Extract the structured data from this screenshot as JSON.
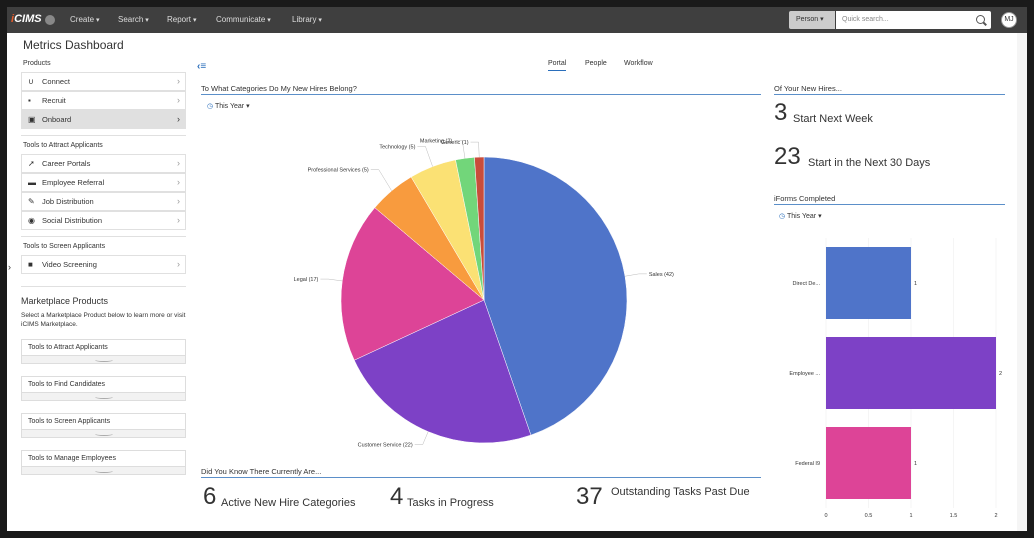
{
  "nav": {
    "logo": "icims",
    "items": [
      "Create",
      "Search",
      "Report",
      "Communicate",
      "Library"
    ],
    "search_type": "Person",
    "search_placeholder": "Quick search...",
    "avatar": "MJ"
  },
  "page_title": "Metrics Dashboard",
  "sidebar": {
    "products_header": "Products",
    "products": [
      {
        "label": "Connect",
        "icon": "magnet-icon"
      },
      {
        "label": "Recruit",
        "icon": "briefcase-icon"
      },
      {
        "label": "Onboard",
        "icon": "id-card-icon"
      }
    ],
    "attract_header": "Tools to Attract Applicants",
    "attract": [
      {
        "label": "Career Portals",
        "icon": "megaphone-icon"
      },
      {
        "label": "Employee Referral",
        "icon": "users-icon"
      },
      {
        "label": "Job Distribution",
        "icon": "pin-icon"
      },
      {
        "label": "Social Distribution",
        "icon": "broadcast-icon"
      }
    ],
    "screen_header": "Tools to Screen Applicants",
    "screen": [
      {
        "label": "Video Screening",
        "icon": "video-camera-icon"
      }
    ],
    "marketplace_title": "Marketplace Products",
    "marketplace_desc": "Select a Marketplace Product below to learn more or visit iCIMS Marketplace.",
    "marketplace_items": [
      "Tools to Attract Applicants",
      "Tools to Find Candidates",
      "Tools to Screen Applicants",
      "Tools to Manage Employees"
    ]
  },
  "tabs": [
    "Portal",
    "People",
    "Workflow"
  ],
  "pie_section": {
    "title": "To What Categories Do My New Hires Belong?",
    "period": "This Year"
  },
  "chart_data": [
    {
      "type": "pie",
      "labels": [
        "Sales (42)",
        "Customer Service (22)",
        "Legal (17)",
        "Professional Services (5)",
        "Technology (5)",
        "Marketing (2)",
        "Generic (1)"
      ],
      "values": [
        42,
        22,
        17,
        5,
        5,
        2,
        1
      ],
      "colors": [
        "#4f74c9",
        "#7d41c6",
        "#dd4497",
        "#f89b3e",
        "#fbe174",
        "#72d67a",
        "#c94d3b"
      ]
    },
    {
      "type": "bar",
      "orientation": "horizontal",
      "categories": [
        "Direct De...",
        "Employee ...",
        "Federal I9"
      ],
      "values": [
        1,
        2,
        1
      ],
      "colors": [
        "#4f74c9",
        "#7d41c6",
        "#dd4497"
      ],
      "xticks": [
        "0",
        "0.5",
        "1",
        "1.5",
        "2"
      ],
      "xlim": [
        0,
        2
      ]
    }
  ],
  "did_you_know": {
    "title": "Did You Know There Currently Are...",
    "stats": [
      {
        "num": "6",
        "label": "Active New Hire Categories"
      },
      {
        "num": "4",
        "label": "Tasks in Progress"
      },
      {
        "num": "37",
        "label": "Outstanding Tasks Past Due"
      }
    ]
  },
  "new_hires": {
    "title": "Of Your New Hires...",
    "stats": [
      {
        "num": "3",
        "label": "Start Next Week"
      },
      {
        "num": "23",
        "label": "Start in the Next 30 Days"
      }
    ]
  },
  "iforms": {
    "title": "iForms Completed",
    "period": "This Year"
  }
}
